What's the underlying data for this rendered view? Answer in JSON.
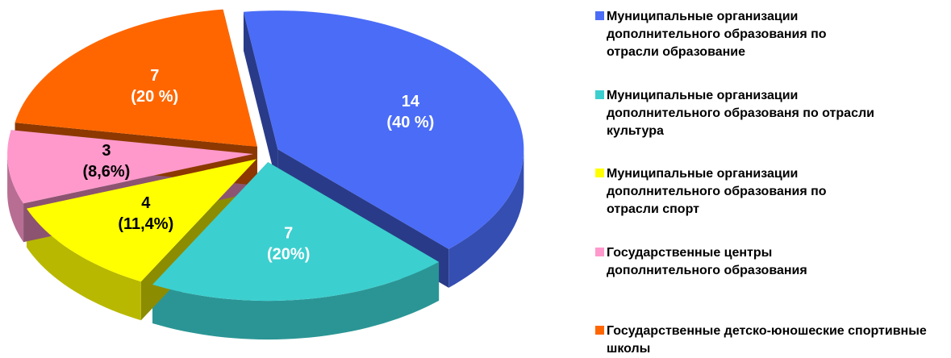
{
  "chart_data": {
    "type": "pie3d",
    "categories": [
      "Муниципальные организации дополнительного образования  по отрасли образование",
      "Муниципальные организации дополнительного образованя по отрасли культура",
      "Муниципальные  организации дополнительного образования по отрасли спорт",
      "Государственные центры дополнительного образования",
      "Государственные детско-юношеские спортивные школы"
    ],
    "values": [
      14,
      7,
      4,
      3,
      7
    ],
    "shares": [
      40,
      20,
      11.4,
      8.6,
      20
    ],
    "share_labels": [
      "(40 %)",
      "(20%)",
      "(11,4%)",
      "(8,6%)",
      "(20 %)"
    ],
    "colors": [
      "#4a6cf7",
      "#3ccfcf",
      "#ffff00",
      "#ff99cc",
      "#ff6600"
    ],
    "legend": "right"
  }
}
